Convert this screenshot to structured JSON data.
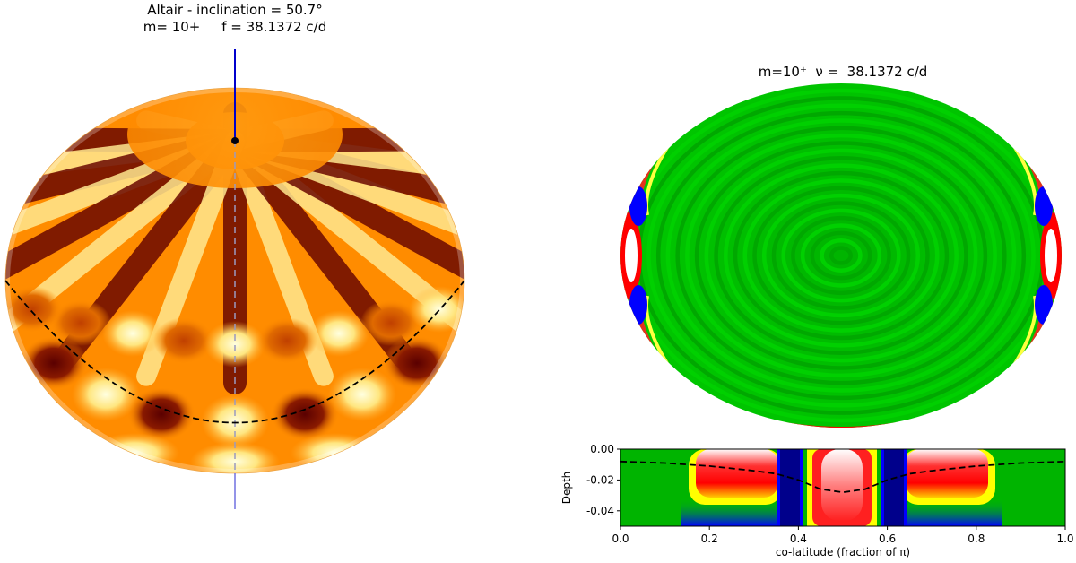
{
  "left_panel": {
    "title_line1": "Altair - inclination = 50.7°",
    "title_line2": "m= 10+     f = 38.1372 c/d"
  },
  "right_panel": {
    "title": "m=10⁺  ν =  38.1372 c/d"
  },
  "colors": {
    "left_colormap": [
      "#5a0000",
      "#b33000",
      "#ff8c00",
      "#ffd24d",
      "#ffffcc"
    ],
    "right_colormap": [
      "#00008b",
      "#0000ff",
      "#00c000",
      "#ffff00",
      "#ff0000",
      "#ffffff"
    ],
    "axis_line": "#0000cc"
  },
  "chart_data": {
    "type": "heatmap",
    "xlabel": "co-latitude (fraction of π)",
    "ylabel": "Depth",
    "xlim": [
      0.0,
      1.0
    ],
    "ylim": [
      -0.05,
      0.0
    ],
    "x_ticks": [
      "0.0",
      "0.2",
      "0.4",
      "0.6",
      "0.8",
      "1.0"
    ],
    "y_ticks": [
      "0.00",
      "-0.02",
      "-0.04"
    ],
    "dashed_curve": {
      "x": [
        0.0,
        0.1,
        0.2,
        0.3,
        0.35,
        0.4,
        0.45,
        0.5,
        0.55,
        0.6,
        0.65,
        0.7,
        0.8,
        0.9,
        1.0
      ],
      "y": [
        -0.008,
        -0.009,
        -0.011,
        -0.014,
        -0.016,
        -0.02,
        -0.026,
        -0.028,
        -0.026,
        -0.02,
        -0.016,
        -0.014,
        -0.011,
        -0.009,
        -0.008
      ]
    }
  }
}
